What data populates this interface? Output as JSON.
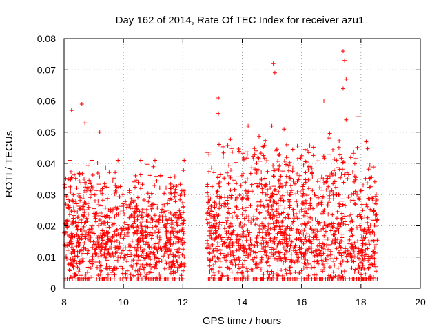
{
  "chart_data": {
    "type": "scatter",
    "title": "Day 162 of 2014, Rate Of TEC Index for receiver azu1",
    "xlabel": "GPS time / hours",
    "ylabel": "ROTI / TECUs",
    "xlim": [
      8,
      20
    ],
    "ylim": [
      0,
      0.08
    ],
    "x_ticks": [
      8,
      10,
      12,
      14,
      16,
      18,
      20
    ],
    "x_tick_labels": [
      "8",
      "10",
      "12",
      "14",
      "16",
      "18",
      "20"
    ],
    "y_ticks": [
      0,
      0.01,
      0.02,
      0.03,
      0.04,
      0.05,
      0.06,
      0.07,
      0.08
    ],
    "y_tick_labels": [
      "0",
      "0.01",
      "0.02",
      "0.03",
      "0.04",
      "0.05",
      "0.06",
      "0.07",
      "0.08"
    ],
    "grid": true,
    "marker": "+",
    "series": [
      {
        "name": "ROTI",
        "color": "#ff0000",
        "segments": [
          {
            "x_start": 8.0,
            "x_end": 12.05,
            "typical_range": [
              0.005,
              0.035
            ],
            "median": 0.014
          },
          {
            "x_start": 12.8,
            "x_end": 18.55,
            "typical_range": [
              0.005,
              0.045
            ],
            "median": 0.016
          }
        ],
        "gap": [
          12.05,
          12.8
        ],
        "notable_points": [
          {
            "x": 8.25,
            "y": 0.057
          },
          {
            "x": 8.6,
            "y": 0.059
          },
          {
            "x": 8.7,
            "y": 0.053
          },
          {
            "x": 9.2,
            "y": 0.05
          },
          {
            "x": 13.2,
            "y": 0.061
          },
          {
            "x": 13.2,
            "y": 0.056
          },
          {
            "x": 14.2,
            "y": 0.052
          },
          {
            "x": 15.05,
            "y": 0.072
          },
          {
            "x": 15.1,
            "y": 0.069
          },
          {
            "x": 15.0,
            "y": 0.052
          },
          {
            "x": 16.75,
            "y": 0.06
          },
          {
            "x": 17.4,
            "y": 0.076
          },
          {
            "x": 17.45,
            "y": 0.073
          },
          {
            "x": 17.4,
            "y": 0.064
          },
          {
            "x": 17.5,
            "y": 0.067
          },
          {
            "x": 17.9,
            "y": 0.055
          },
          {
            "x": 17.5,
            "y": 0.054
          }
        ]
      }
    ]
  }
}
